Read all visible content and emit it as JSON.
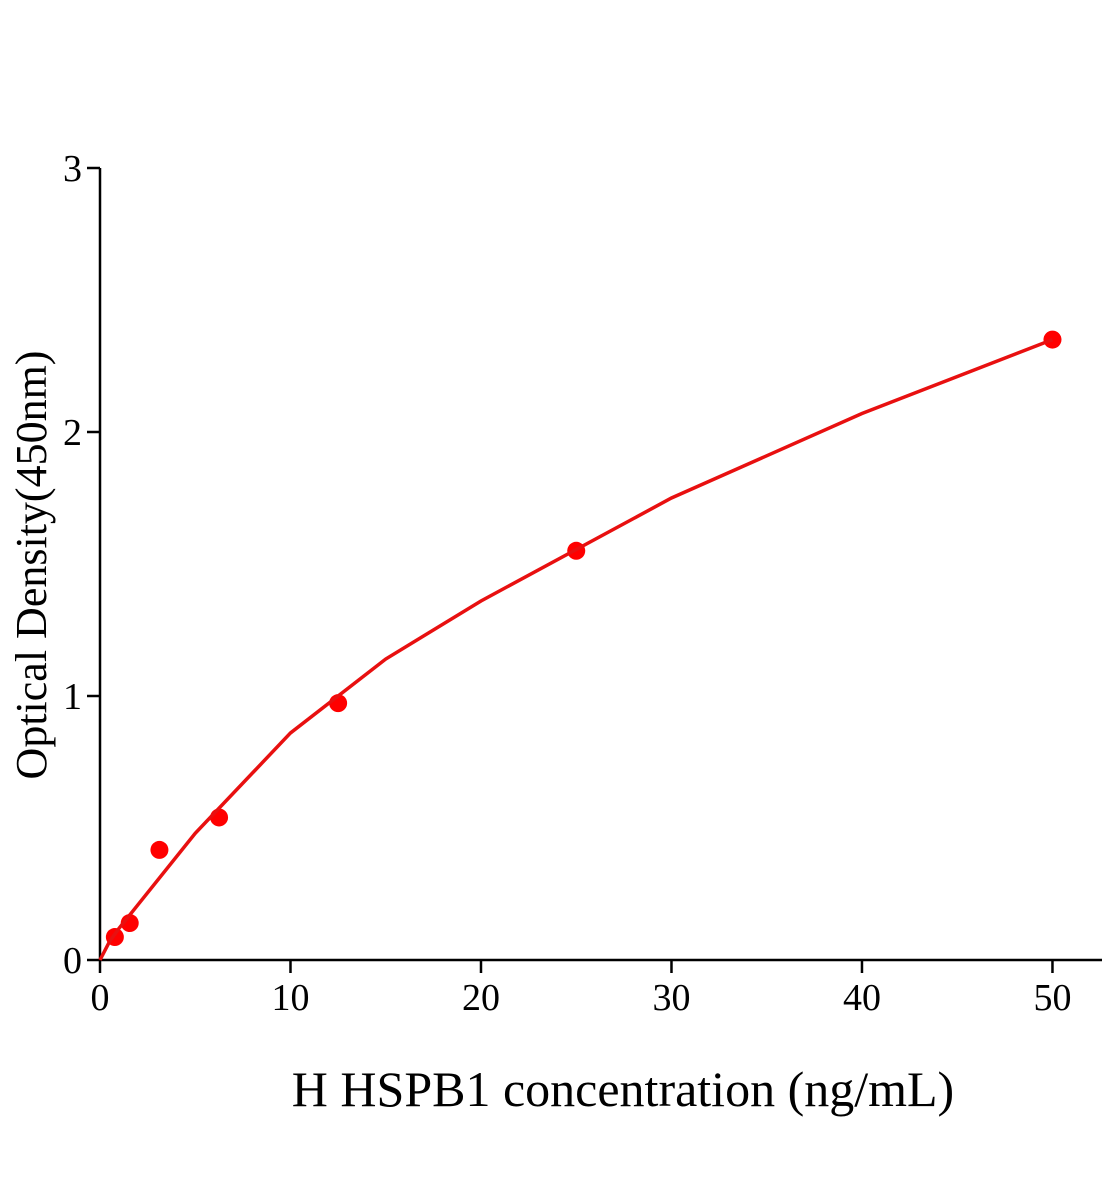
{
  "chart_data": {
    "type": "scatter",
    "x_label": "H HSPB1 concentration (ng/mL)",
    "y_label": "Optical Density(450nm)",
    "series": [
      {
        "kind": "points",
        "color": "#ff0000",
        "x": [
          0.78,
          1.56,
          3.12,
          6.25,
          12.5,
          25,
          50
        ],
        "values": [
          0.087,
          0.14,
          0.417,
          0.54,
          0.973,
          1.55,
          2.35
        ]
      },
      {
        "kind": "curve",
        "color": "#e81010",
        "x": [
          0,
          0.5,
          1,
          2,
          5,
          10,
          15,
          20,
          30,
          40,
          50
        ],
        "values": [
          0,
          0.07,
          0.12,
          0.21,
          0.48,
          0.86,
          1.14,
          1.36,
          1.75,
          2.07,
          2.35
        ]
      }
    ],
    "xlim": [
      0,
      52.6
    ],
    "ylim": [
      0,
      3
    ],
    "xticks": [
      0,
      10,
      20,
      30,
      40,
      50
    ],
    "yticks": [
      0,
      1,
      2,
      3
    ],
    "grid": false
  }
}
